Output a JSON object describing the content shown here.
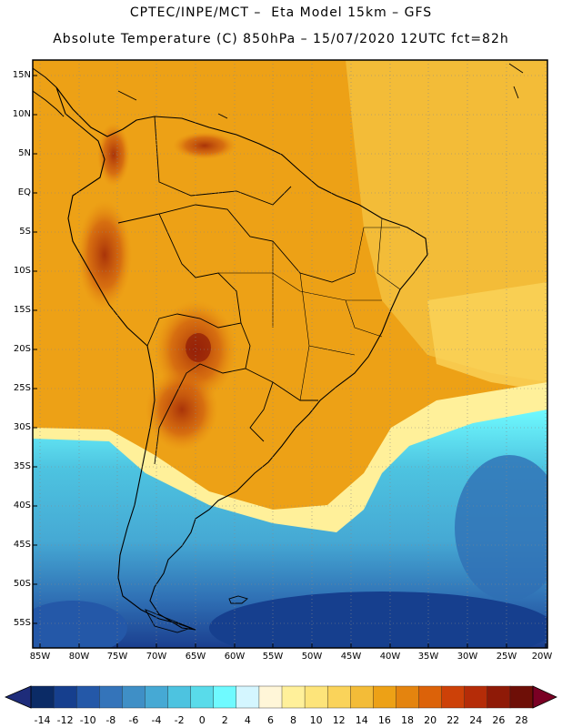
{
  "header": {
    "line1": "CPTEC/INPE/MCT –  Eta Model 15km – GFS",
    "line2": "Absolute Temperature (C) 850hPa – 15/07/2020 12UTC fct=82h"
  },
  "map": {
    "lat_labels": [
      "15N",
      "10N",
      "5N",
      "EQ",
      "5S",
      "10S",
      "15S",
      "20S",
      "25S",
      "30S",
      "35S",
      "40S",
      "45S",
      "50S",
      "55S"
    ],
    "lon_labels": [
      "85W",
      "80W",
      "75W",
      "70W",
      "65W",
      "60W",
      "55W",
      "50W",
      "45W",
      "40W",
      "35W",
      "30W",
      "25W",
      "20W"
    ]
  },
  "colorbar": {
    "colors": [
      "#0b2b66",
      "#163f8e",
      "#2458a8",
      "#3474ba",
      "#3f8fc6",
      "#46a9d4",
      "#4dc3e0",
      "#59dbea",
      "#6ffaff",
      "#d4f6ff",
      "#fff6d8",
      "#fff09a",
      "#fde47a",
      "#fad35a",
      "#f3bc38",
      "#eda116",
      "#e4840f",
      "#dc6209",
      "#cd4108",
      "#b52c08",
      "#8f1a07",
      "#6e0f07"
    ],
    "ticks": [
      "-14",
      "-12",
      "-10",
      "-8",
      "-6",
      "-4",
      "-2",
      "0",
      "2",
      "4",
      "6",
      "8",
      "10",
      "12",
      "14",
      "16",
      "18",
      "20",
      "22",
      "24",
      "26",
      "28"
    ],
    "under_color": "#1e2c7a",
    "over_color": "#7a0024"
  }
}
